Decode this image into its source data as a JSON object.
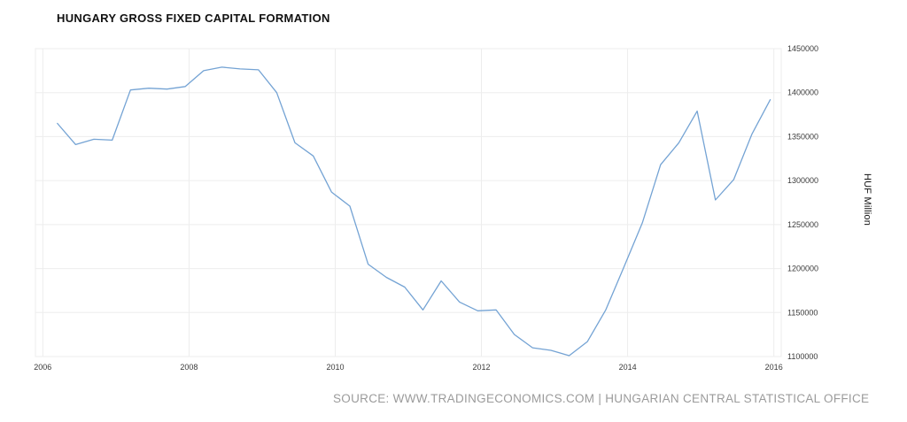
{
  "header": {
    "title": "HUNGARY GROSS FIXED CAPITAL FORMATION"
  },
  "footer": {
    "source": "SOURCE: WWW.TRADINGECONOMICS.COM | HUNGARIAN CENTRAL STATISTICAL OFFICE"
  },
  "chart_data": {
    "type": "line",
    "title": "HUNGARY GROSS FIXED CAPITAL FORMATION",
    "xlabel": "",
    "ylabel": "HUF Million",
    "series_name": "Hungary Gross Fixed Capital Formation",
    "periods": [
      "2006-Q1",
      "2006-Q2",
      "2006-Q3",
      "2006-Q4",
      "2007-Q1",
      "2007-Q2",
      "2007-Q3",
      "2007-Q4",
      "2008-Q1",
      "2008-Q2",
      "2008-Q3",
      "2008-Q4",
      "2009-Q1",
      "2009-Q2",
      "2009-Q3",
      "2009-Q4",
      "2010-Q1",
      "2010-Q2",
      "2010-Q3",
      "2010-Q4",
      "2011-Q1",
      "2011-Q2",
      "2011-Q3",
      "2011-Q4",
      "2012-Q1",
      "2012-Q2",
      "2012-Q3",
      "2012-Q4",
      "2013-Q1",
      "2013-Q2",
      "2013-Q3",
      "2013-Q4",
      "2014-Q1",
      "2014-Q2",
      "2014-Q3",
      "2014-Q4",
      "2015-Q1",
      "2015-Q2",
      "2015-Q3",
      "2015-Q4"
    ],
    "values": [
      1365000,
      1341000,
      1347000,
      1346000,
      1403000,
      1405000,
      1404000,
      1407000,
      1425000,
      1429000,
      1427000,
      1426000,
      1400000,
      1343000,
      1328000,
      1287000,
      1271000,
      1205000,
      1190000,
      1179000,
      1153000,
      1186000,
      1162000,
      1152000,
      1153000,
      1125000,
      1110000,
      1107000,
      1101000,
      1117000,
      1153000,
      1202000,
      1252000,
      1318000,
      1343000,
      1379000,
      1278000,
      1301000,
      1353000,
      1392000
    ],
    "xticks": [
      2006,
      2008,
      2010,
      2012,
      2014,
      2016
    ],
    "yticks": [
      1100000,
      1150000,
      1200000,
      1250000,
      1300000,
      1350000,
      1400000,
      1450000
    ],
    "xlim": [
      2005.9,
      2016.1
    ],
    "ylim": [
      1100000,
      1450000
    ],
    "grid": true,
    "legend_position": "none",
    "line_color": "#74a3d4",
    "grid_color": "#ededed",
    "tick_color": "#3a3a3a"
  }
}
